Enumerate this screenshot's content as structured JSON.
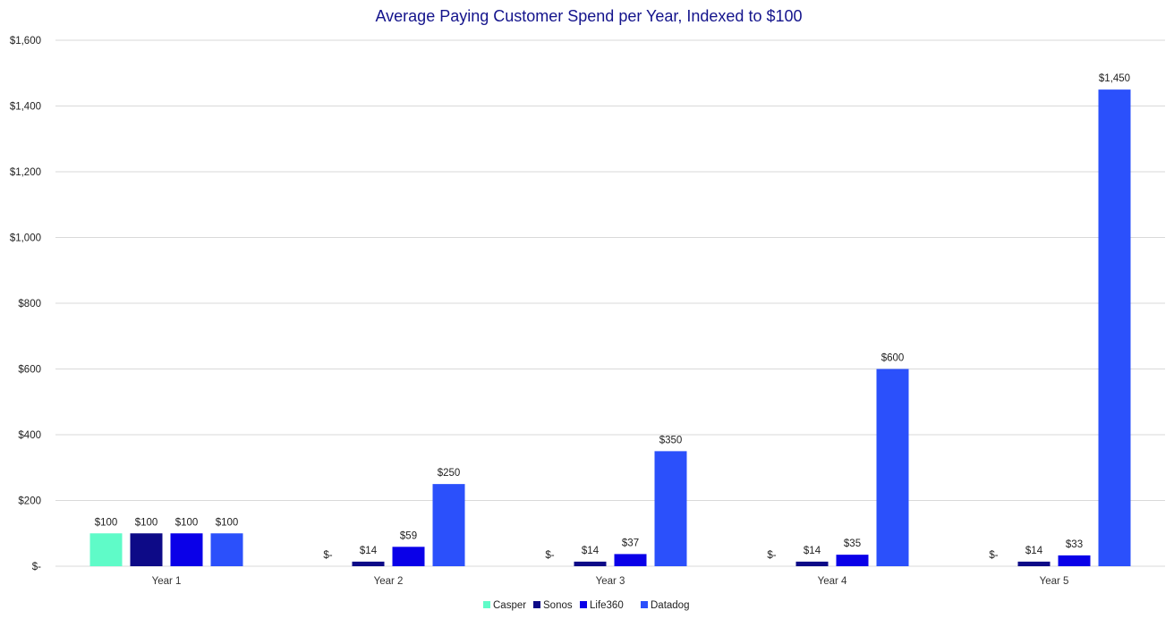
{
  "chart_data": {
    "type": "bar",
    "title": "Average Paying Customer Spend per Year, Indexed to $100",
    "xlabel": "",
    "ylabel": "",
    "categories": [
      "Year 1",
      "Year 2",
      "Year 3",
      "Year 4",
      "Year 5"
    ],
    "series": [
      {
        "name": "Casper",
        "color": "#5ffbc8",
        "values": [
          100,
          0,
          0,
          0,
          0
        ],
        "labels": [
          "$100",
          "$-",
          "$-",
          "$-",
          "$-"
        ]
      },
      {
        "name": "Sonos",
        "color": "#0d0a87",
        "values": [
          100,
          14,
          14,
          14,
          14
        ],
        "labels": [
          "$100",
          "$14",
          "$14",
          "$14",
          "$14"
        ]
      },
      {
        "name": "Life360",
        "color": "#0a00e8",
        "values": [
          100,
          59,
          37,
          35,
          33
        ],
        "labels": [
          "$100",
          "$59",
          "$37",
          "$35",
          "$33"
        ]
      },
      {
        "name": "Datadog",
        "color": "#2b50fb",
        "values": [
          100,
          250,
          350,
          600,
          1450
        ],
        "labels": [
          "$100",
          "$250",
          "$350",
          "$600",
          "$1,450"
        ]
      }
    ],
    "ylim": [
      0,
      1600
    ],
    "yticks": [
      0,
      200,
      400,
      600,
      800,
      1000,
      1200,
      1400,
      1600
    ],
    "ytick_labels": [
      "$-",
      "$200",
      "$400",
      "$600",
      "$800",
      "$1,000",
      "$1,200",
      "$1,400",
      "$1,600"
    ],
    "grid": true,
    "legend": "bottom",
    "title_color": "#14148c",
    "gridline_color": "#d9d9d9"
  }
}
